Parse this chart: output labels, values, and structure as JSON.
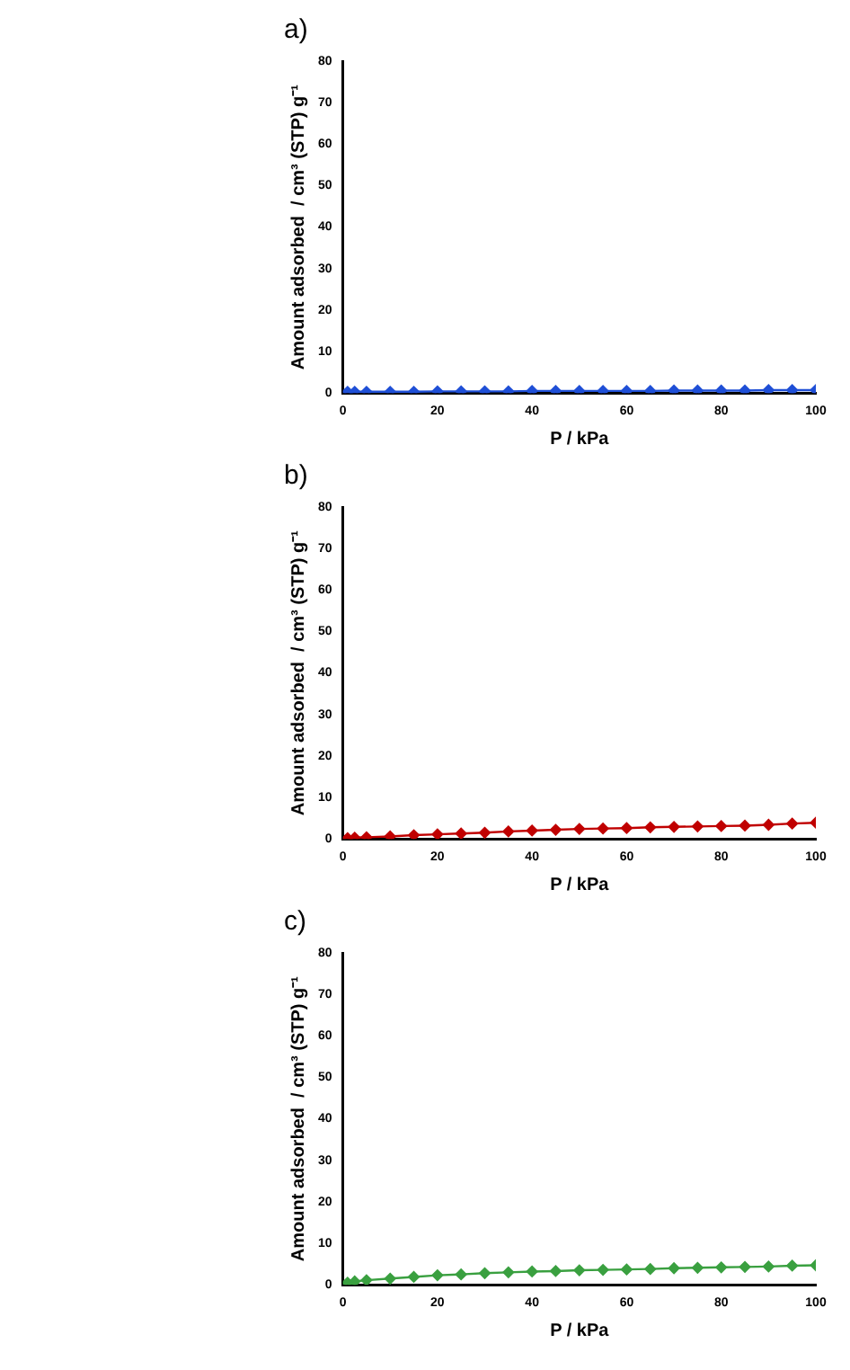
{
  "chart_data": [
    {
      "type": "line",
      "title": "a)",
      "xlabel": "P / kPa",
      "ylabel": "Amount adsorbed  / cm³ (STP) g⁻¹",
      "x": [
        1,
        2.5,
        5,
        10,
        15,
        20,
        25,
        30,
        35,
        40,
        45,
        50,
        55,
        60,
        65,
        70,
        75,
        80,
        85,
        90,
        95,
        100
      ],
      "xlim": [
        0,
        100
      ],
      "xticks": [
        0,
        20,
        40,
        60,
        80,
        100
      ],
      "ylim": [
        0,
        80
      ],
      "yticks": [
        0,
        10,
        20,
        30,
        40,
        50,
        60,
        70,
        80
      ],
      "grid": false,
      "legend": false,
      "marker": "diamond",
      "line_style": "solid",
      "series": [
        {
          "color": "#1f4fd6",
          "values": [
            0.3,
            0.3,
            0.3,
            0.3,
            0.3,
            0.4,
            0.4,
            0.4,
            0.4,
            0.5,
            0.5,
            0.5,
            0.5,
            0.5,
            0.5,
            0.6,
            0.6,
            0.6,
            0.6,
            0.7,
            0.7,
            0.7
          ]
        }
      ]
    },
    {
      "type": "line",
      "title": "b)",
      "xlabel": "P / kPa",
      "ylabel": "Amount adsorbed  / cm³ (STP) g⁻¹",
      "x": [
        1,
        2.5,
        5,
        10,
        15,
        20,
        25,
        30,
        35,
        40,
        45,
        50,
        55,
        60,
        65,
        70,
        75,
        80,
        85,
        90,
        95,
        100
      ],
      "xlim": [
        0,
        100
      ],
      "xticks": [
        0,
        20,
        40,
        60,
        80,
        100
      ],
      "ylim": [
        0,
        80
      ],
      "yticks": [
        0,
        10,
        20,
        30,
        40,
        50,
        60,
        70,
        80
      ],
      "grid": false,
      "legend": false,
      "marker": "diamond",
      "line_style": "solid",
      "series": [
        {
          "color": "#c00000",
          "values": [
            0.2,
            0.3,
            0.4,
            0.6,
            0.9,
            1.1,
            1.3,
            1.5,
            1.8,
            2,
            2.2,
            2.4,
            2.5,
            2.6,
            2.8,
            2.9,
            3,
            3.1,
            3.2,
            3.4,
            3.7,
            3.9
          ]
        }
      ]
    },
    {
      "type": "line",
      "title": "c)",
      "xlabel": "P / kPa",
      "ylabel": "Amount adsorbed  / cm³ (STP) g⁻¹",
      "x": [
        1,
        2.5,
        5,
        10,
        15,
        20,
        25,
        30,
        35,
        40,
        45,
        50,
        55,
        60,
        65,
        70,
        75,
        80,
        85,
        90,
        95,
        100
      ],
      "xlim": [
        0,
        100
      ],
      "xticks": [
        0,
        20,
        40,
        60,
        80,
        100
      ],
      "ylim": [
        0,
        80
      ],
      "yticks": [
        0,
        10,
        20,
        30,
        40,
        50,
        60,
        70,
        80
      ],
      "grid": false,
      "legend": false,
      "marker": "diamond",
      "line_style": "solid",
      "series": [
        {
          "color": "#3aa040",
          "values": [
            0.5,
            0.8,
            1.1,
            1.5,
            1.9,
            2.3,
            2.5,
            2.8,
            3,
            3.2,
            3.3,
            3.5,
            3.6,
            3.7,
            3.8,
            4,
            4.1,
            4.2,
            4.3,
            4.4,
            4.6,
            4.7
          ]
        }
      ]
    }
  ]
}
